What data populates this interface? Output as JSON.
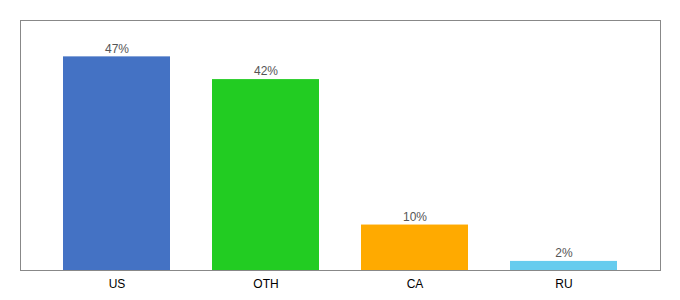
{
  "chart_data": {
    "type": "bar",
    "categories": [
      "US",
      "OTH",
      "CA",
      "RU"
    ],
    "values": [
      47,
      42,
      10,
      2
    ],
    "value_labels": [
      "47%",
      "42%",
      "10%",
      "2%"
    ],
    "colors": [
      "#4472c4",
      "#22cc22",
      "#ffaa00",
      "#66ccee"
    ],
    "ylim": [
      0,
      55
    ],
    "data_labels": true,
    "tick_labels": "x",
    "grid": false
  }
}
